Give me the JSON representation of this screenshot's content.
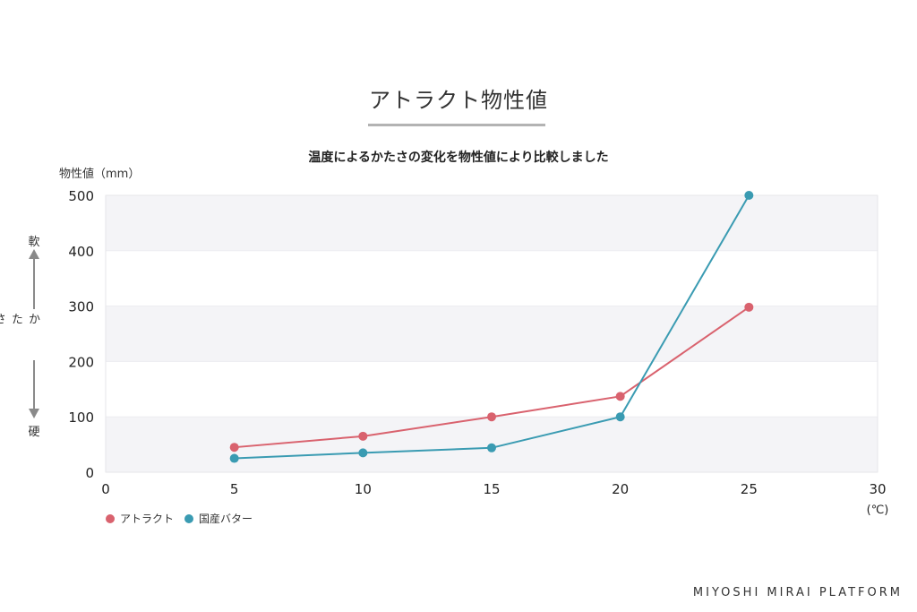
{
  "page_title": "アトラクト物性値",
  "footer": "MIYOSHI MIRAI PLATFORM",
  "hardness_axis": {
    "top_label": "軟",
    "middle_label": "かたさ",
    "bottom_label": "硬"
  },
  "chart_data": {
    "type": "line",
    "title": "温度によるかたさの変化を物性値により比較しました",
    "ylabel": "物性値（mm）",
    "xlabel": "",
    "x_unit": "(℃)",
    "xlim": [
      0,
      30
    ],
    "ylim": [
      0,
      500
    ],
    "x_ticks": [
      0,
      5,
      10,
      15,
      20,
      25,
      30
    ],
    "y_ticks": [
      0,
      100,
      200,
      300,
      400,
      500
    ],
    "grid": "alternating horizontal bands",
    "legend_position": "bottom-left",
    "series": [
      {
        "name": "アトラクト",
        "color": "#d9626e",
        "x": [
          5,
          10,
          15,
          20,
          25
        ],
        "y": [
          45,
          65,
          100,
          137,
          298
        ]
      },
      {
        "name": "国産バター",
        "color": "#3a9bb2",
        "x": [
          5,
          10,
          15,
          20,
          25
        ],
        "y": [
          25,
          35,
          44,
          100,
          500
        ]
      }
    ]
  }
}
